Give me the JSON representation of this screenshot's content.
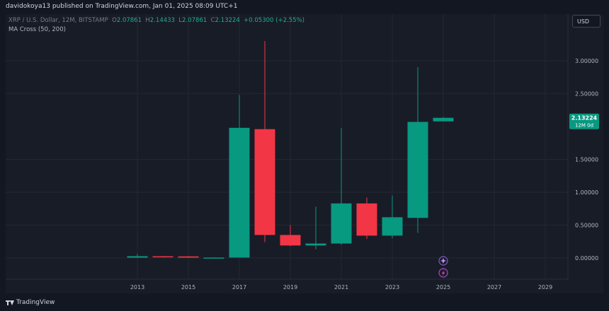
{
  "header": {
    "published": "davidokoya13 published on TradingView.com, Jan 01, 2025 08:09 UTC+1"
  },
  "legend": {
    "symbol": "XRP / U.S. Dollar, 12M, BITSTAMP",
    "o_label": "O",
    "o_value": "2.07861",
    "h_label": "H",
    "h_value": "2.14433",
    "l_label": "L",
    "l_value": "2.07861",
    "c_label": "C",
    "c_value": "2.13224",
    "change": "+0.05300 (+2.55%)",
    "indicator": "MA Cross (50, 200)"
  },
  "currency_button": "USD",
  "price_tag": {
    "value": "2.13224",
    "sub": "12M 0d"
  },
  "footer": {
    "brand": "TradingView"
  },
  "colors": {
    "up": "#089981",
    "down": "#f23645",
    "background": "#181c27",
    "grid": "#242733",
    "axis_text": "#b2b5be"
  },
  "chart_data": {
    "type": "candlestick",
    "y_axis_ticks": [
      "0.00000",
      "0.50000",
      "1.00000",
      "1.50000",
      "2.50000",
      "3.00000"
    ],
    "ylim": [
      -0.35,
      3.55
    ],
    "x_axis_ticks": [
      "2013",
      "2015",
      "2017",
      "2019",
      "2021",
      "2023",
      "2025",
      "2027",
      "2029"
    ],
    "candles": [
      {
        "year": 2013,
        "open": 0.005,
        "high": 0.06,
        "low": 0.003,
        "close": 0.027
      },
      {
        "year": 2014,
        "open": 0.026,
        "high": 0.03,
        "low": 0.02,
        "close": 0.024
      },
      {
        "year": 2015,
        "open": 0.024,
        "high": 0.03,
        "low": 0.003,
        "close": 0.006
      },
      {
        "year": 2016,
        "open": 0.006,
        "high": 0.01,
        "low": 0.002,
        "close": 0.0065
      },
      {
        "year": 2017,
        "open": 0.0065,
        "high": 2.48,
        "low": 0.005,
        "close": 1.98
      },
      {
        "year": 2018,
        "open": 1.96,
        "high": 3.3,
        "low": 0.24,
        "close": 0.35
      },
      {
        "year": 2019,
        "open": 0.35,
        "high": 0.5,
        "low": 0.18,
        "close": 0.19
      },
      {
        "year": 2020,
        "open": 0.19,
        "high": 0.78,
        "low": 0.13,
        "close": 0.22
      },
      {
        "year": 2021,
        "open": 0.22,
        "high": 1.98,
        "low": 0.2,
        "close": 0.83
      },
      {
        "year": 2022,
        "open": 0.83,
        "high": 0.92,
        "low": 0.29,
        "close": 0.34
      },
      {
        "year": 2023,
        "open": 0.34,
        "high": 0.95,
        "low": 0.3,
        "close": 0.62
      },
      {
        "year": 2024,
        "open": 0.61,
        "high": 2.9,
        "low": 0.38,
        "close": 2.07
      },
      {
        "year": 2025,
        "open": 2.07861,
        "high": 2.14433,
        "low": 2.07861,
        "close": 2.13224
      }
    ]
  }
}
